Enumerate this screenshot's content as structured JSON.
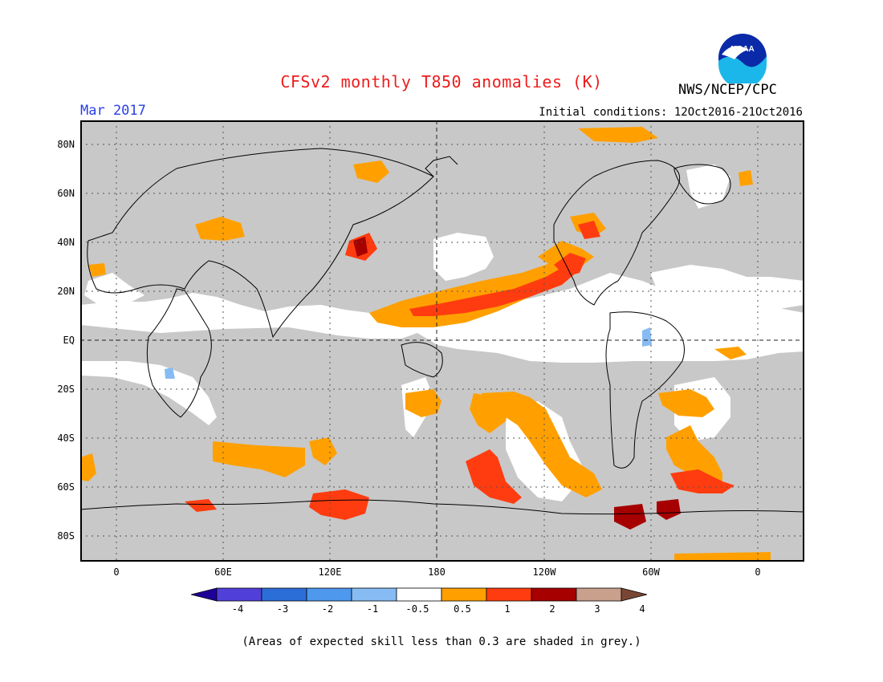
{
  "header": {
    "title": "CFSv2 monthly T850 anomalies (K)",
    "period": "Mar 2017",
    "initial_conditions": "Initial conditions: 12Oct2016-21Oct2016",
    "agency": "NWS/NCEP/CPC",
    "logo_text": "NOAA"
  },
  "map": {
    "lat_labels": [
      "80N",
      "60N",
      "40N",
      "20N",
      "EQ",
      "20S",
      "40S",
      "60S",
      "80S"
    ],
    "lon_labels": [
      "0",
      "60E",
      "120E",
      "180",
      "120W",
      "60W",
      "0"
    ],
    "ocean_color": "#c8c8c8",
    "skill_color": "#ffffff"
  },
  "colorbar": {
    "labels": [
      "-4",
      "-3",
      "-2",
      "-1",
      "-0.5",
      "0.5",
      "1",
      "2",
      "3",
      "4"
    ],
    "colors": [
      "#1e0098",
      "#5040d8",
      "#2c6ed8",
      "#4e98ee",
      "#86bcf3",
      "#ffffff",
      "#ffa000",
      "#ff3c10",
      "#a60000",
      "#c8a08c",
      "#7a4634"
    ]
  },
  "footnote": "(Areas of expected skill less than 0.3 are shaded in grey.)"
}
